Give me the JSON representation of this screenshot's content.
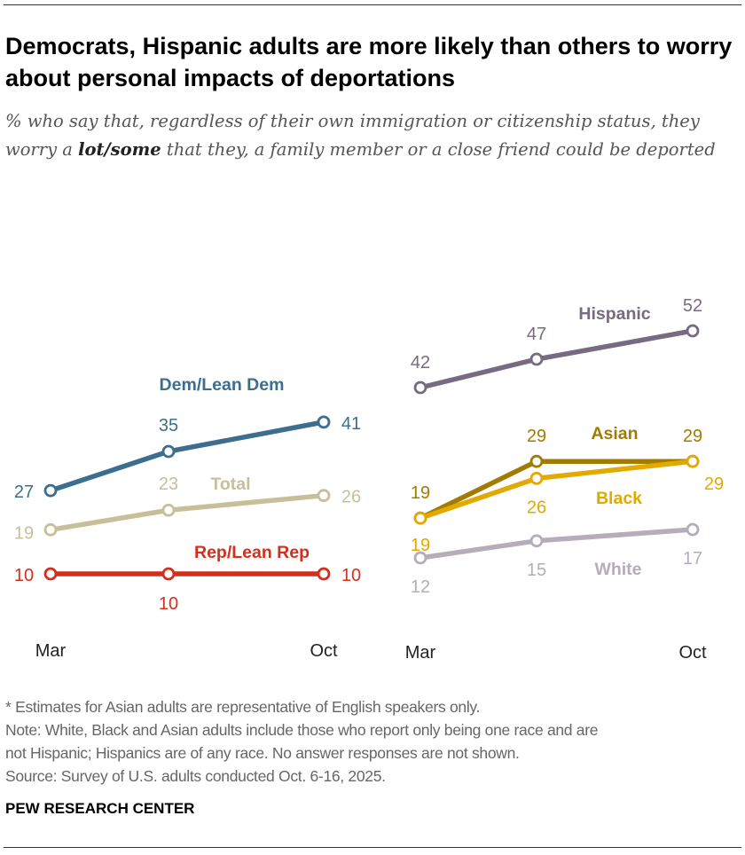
{
  "title": "Democrats, Hispanic adults are more likely than others to worry about personal impacts of deportations",
  "subtitle": {
    "pre": "% who say that, regardless of their own immigration or citizenship status, they worry a ",
    "bold": "lot/some",
    "post": " that they, a family member or a close friend could be deported"
  },
  "chart_data": [
    {
      "type": "line",
      "x": [
        "Mar",
        "",
        "Oct"
      ],
      "tick_labels": [
        "Mar",
        "Oct"
      ],
      "series": [
        {
          "name": "Dem/Lean Dem",
          "values": [
            27,
            35,
            41
          ],
          "color": "#3c6e8f"
        },
        {
          "name": "Total",
          "values": [
            19,
            23,
            26
          ],
          "color": "#c8bf99"
        },
        {
          "name": "Rep/Lean Rep",
          "values": [
            10,
            10,
            10
          ],
          "color": "#d42e1c"
        }
      ],
      "grid": false
    },
    {
      "type": "line",
      "x": [
        "Mar",
        "",
        "Oct"
      ],
      "tick_labels": [
        "Mar",
        "Oct"
      ],
      "series": [
        {
          "name": "Hispanic",
          "values": [
            42,
            47,
            52
          ],
          "color": "#776a82"
        },
        {
          "name": "Asian",
          "values": [
            19,
            29,
            29
          ],
          "color": "#a27c00"
        },
        {
          "name": "Black",
          "values": [
            19,
            26,
            29
          ],
          "color": "#e2a900"
        },
        {
          "name": "White",
          "values": [
            12,
            15,
            17
          ],
          "color": "#b6acba"
        }
      ],
      "grid": false
    }
  ],
  "footnotes": [
    "* Estimates for Asian adults are representative of English speakers only.",
    "Note: White, Black and Asian adults include those who report only being one race and are",
    "not Hispanic; Hispanics are of any race. No answer responses are not shown.",
    "Source: Survey of U.S. adults conducted Oct. 6-16, 2025."
  ],
  "brand": "PEW RESEARCH CENTER"
}
